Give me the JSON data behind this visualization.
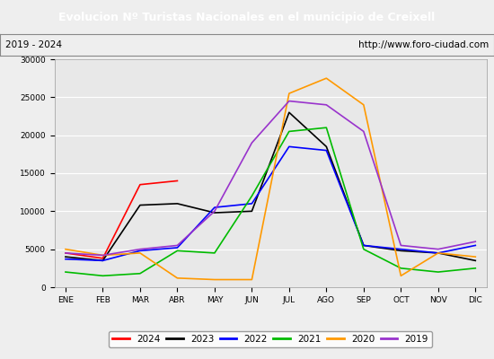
{
  "title": "Evolucion Nº Turistas Nacionales en el municipio de Creixell",
  "subtitle_left": "2019 - 2024",
  "subtitle_right": "http://www.foro-ciudad.com",
  "title_bg_color": "#4472c4",
  "title_text_color": "#ffffff",
  "months": [
    "ENE",
    "FEB",
    "MAR",
    "ABR",
    "MAY",
    "JUN",
    "JUL",
    "AGO",
    "SEP",
    "OCT",
    "NOV",
    "DIC"
  ],
  "ylim": [
    0,
    30000
  ],
  "yticks": [
    0,
    5000,
    10000,
    15000,
    20000,
    25000,
    30000
  ],
  "series": {
    "2024": {
      "color": "#ff0000",
      "data": [
        4500,
        3800,
        13500,
        14000,
        null,
        null,
        null,
        null,
        null,
        null,
        null,
        null
      ]
    },
    "2023": {
      "color": "#000000",
      "data": [
        4000,
        3500,
        10800,
        11000,
        9800,
        10000,
        23000,
        18500,
        5500,
        4800,
        4500,
        3500
      ]
    },
    "2022": {
      "color": "#0000ff",
      "data": [
        3700,
        3500,
        4800,
        5200,
        10500,
        11000,
        18500,
        18000,
        5500,
        5000,
        4500,
        5500
      ]
    },
    "2021": {
      "color": "#00bb00",
      "data": [
        2000,
        1500,
        1800,
        4800,
        4500,
        12000,
        20500,
        21000,
        5000,
        2500,
        2000,
        2500
      ]
    },
    "2020": {
      "color": "#ff9900",
      "data": [
        5000,
        4200,
        4500,
        1200,
        1000,
        1000,
        25500,
        27500,
        24000,
        1500,
        4500,
        4000
      ]
    },
    "2019": {
      "color": "#9933cc",
      "data": [
        4500,
        4200,
        5000,
        5500,
        10000,
        19000,
        24500,
        24000,
        20500,
        5500,
        5000,
        6000
      ]
    }
  },
  "legend_order": [
    "2024",
    "2023",
    "2022",
    "2021",
    "2020",
    "2019"
  ],
  "bg_color": "#eeeeee",
  "plot_bg_color": "#e8e8e8",
  "grid_color": "#ffffff"
}
